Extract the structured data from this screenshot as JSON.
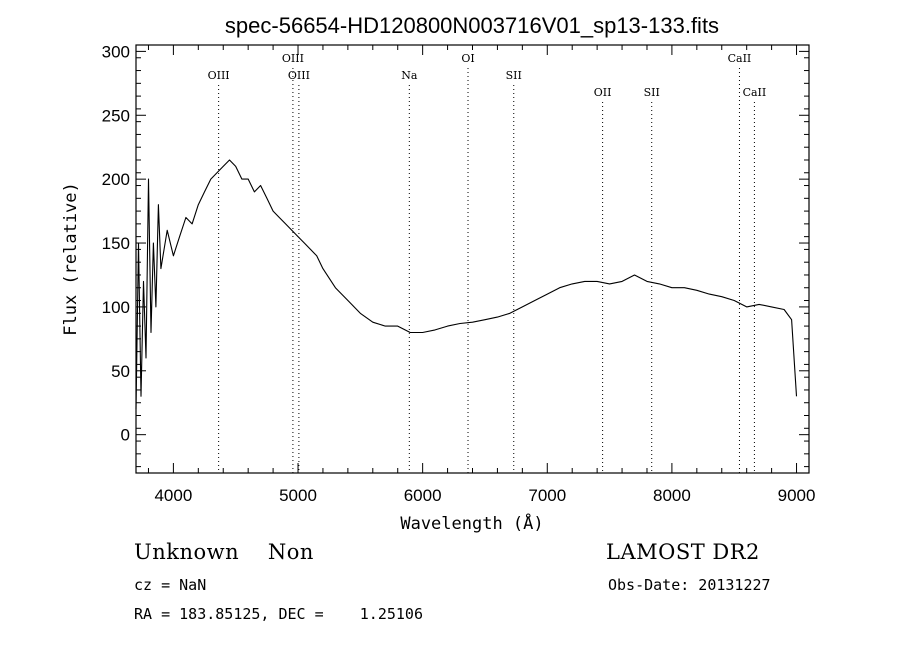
{
  "chart_data": {
    "type": "line",
    "title": "spec-56654-HD120800N003716V01_sp13-133.fits",
    "xlabel": "Wavelength (Å)",
    "ylabel": "Flux (relative)",
    "xlim": [
      3700,
      9100
    ],
    "ylim": [
      -30,
      305
    ],
    "xticks": [
      4000,
      5000,
      6000,
      7000,
      8000,
      9000
    ],
    "yticks": [
      0,
      50,
      100,
      150,
      200,
      250,
      300
    ],
    "grid": false,
    "line_color": "#000000",
    "spectral_lines": [
      {
        "label": "OIII",
        "wavelength": 4363,
        "row": "upper"
      },
      {
        "label": "OIII",
        "wavelength": 4959,
        "row": "top"
      },
      {
        "label": "OIII",
        "wavelength": 5007,
        "row": "upper"
      },
      {
        "label": "Na",
        "wavelength": 5893,
        "row": "upper"
      },
      {
        "label": "OI",
        "wavelength": 6364,
        "row": "top"
      },
      {
        "label": "SII",
        "wavelength": 6731,
        "row": "upper"
      },
      {
        "label": "OII",
        "wavelength": 7444,
        "row": "lower"
      },
      {
        "label": "SII",
        "wavelength": 7838,
        "row": "lower"
      },
      {
        "label": "CaII",
        "wavelength": 8542,
        "row": "top"
      },
      {
        "label": "CaII",
        "wavelength": 8662,
        "row": "lower"
      }
    ],
    "series": [
      {
        "x": [
          3700,
          3720,
          3740,
          3760,
          3780,
          3800,
          3820,
          3840,
          3860,
          3880,
          3900,
          3950,
          4000,
          4050,
          4100,
          4150,
          4200,
          4250,
          4300,
          4350,
          4400,
          4450,
          4500,
          4550,
          4600,
          4650,
          4700,
          4750,
          4800,
          4850,
          4900,
          4950,
          5000,
          5050,
          5100,
          5150,
          5200,
          5300,
          5400,
          5500,
          5600,
          5700,
          5800,
          5900,
          6000,
          6100,
          6200,
          6300,
          6400,
          6500,
          6600,
          6700,
          6800,
          6900,
          7000,
          7100,
          7200,
          7300,
          7400,
          7500,
          7600,
          7700,
          7800,
          7900,
          8000,
          8100,
          8200,
          8300,
          8400,
          8500,
          8600,
          8700,
          8800,
          8900,
          8960,
          9000
        ],
        "y": [
          20,
          150,
          30,
          120,
          60,
          200,
          80,
          150,
          100,
          180,
          130,
          160,
          140,
          155,
          170,
          165,
          180,
          190,
          200,
          205,
          210,
          215,
          210,
          200,
          200,
          190,
          195,
          185,
          175,
          170,
          165,
          160,
          155,
          150,
          145,
          140,
          130,
          115,
          105,
          95,
          88,
          85,
          85,
          80,
          80,
          82,
          85,
          87,
          88,
          90,
          92,
          95,
          100,
          105,
          110,
          115,
          118,
          120,
          120,
          118,
          120,
          125,
          120,
          118,
          115,
          115,
          113,
          110,
          108,
          105,
          100,
          102,
          100,
          98,
          90,
          30
        ]
      }
    ]
  },
  "annotations": {
    "left_line1": "Unknown    Non",
    "left_line2": "cz = NaN",
    "left_line3": "RA = 183.85125, DEC =    1.25106",
    "right_line1": "LAMOST DR2",
    "right_line2": "Obs-Date: 20131227"
  }
}
